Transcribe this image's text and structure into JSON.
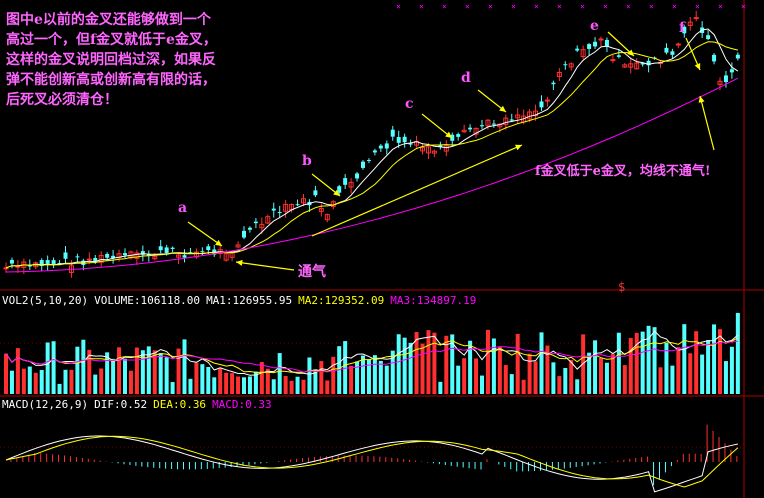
{
  "chart_data": [
    {
      "type": "candlestick",
      "panel": "price",
      "annotation_note": [
        "图中e以前的金叉还能够做到一个",
        "高过一个，但f金叉就低于e金叉，",
        "这样的金叉说明回档过深，如果反",
        "弹不能创新高或创新高有限的话，",
        "后死叉必须清仓！"
      ],
      "tongqi_label": "通气",
      "f_note": "f金叉低于e金叉，均线不通气!",
      "point_labels": [
        "a",
        "b",
        "c",
        "d",
        "e",
        "f"
      ],
      "marker": "$"
    },
    {
      "type": "bar",
      "panel": "volume",
      "indicator": "VOL2(5,10,20)",
      "values": {
        "volume": "VOLUME:106118.00",
        "ma1": "MA1:126955.95",
        "ma2": "MA2:129352.09",
        "ma3": "MA3:134897.19"
      }
    },
    {
      "type": "bar",
      "panel": "macd",
      "indicator": "MACD(12,26,9)",
      "values": {
        "dif": "DIF:0.52",
        "dea": "DEA:0.36",
        "macd": "MACD:0.33"
      }
    }
  ],
  "colors": {
    "up": "#ff3030",
    "down": "#54ffff",
    "ma_white": "#ffffff",
    "ma_yellow": "#ffff00",
    "ma_magenta": "#ff00ff",
    "note": "#ff66ff",
    "border": "#b00000"
  }
}
